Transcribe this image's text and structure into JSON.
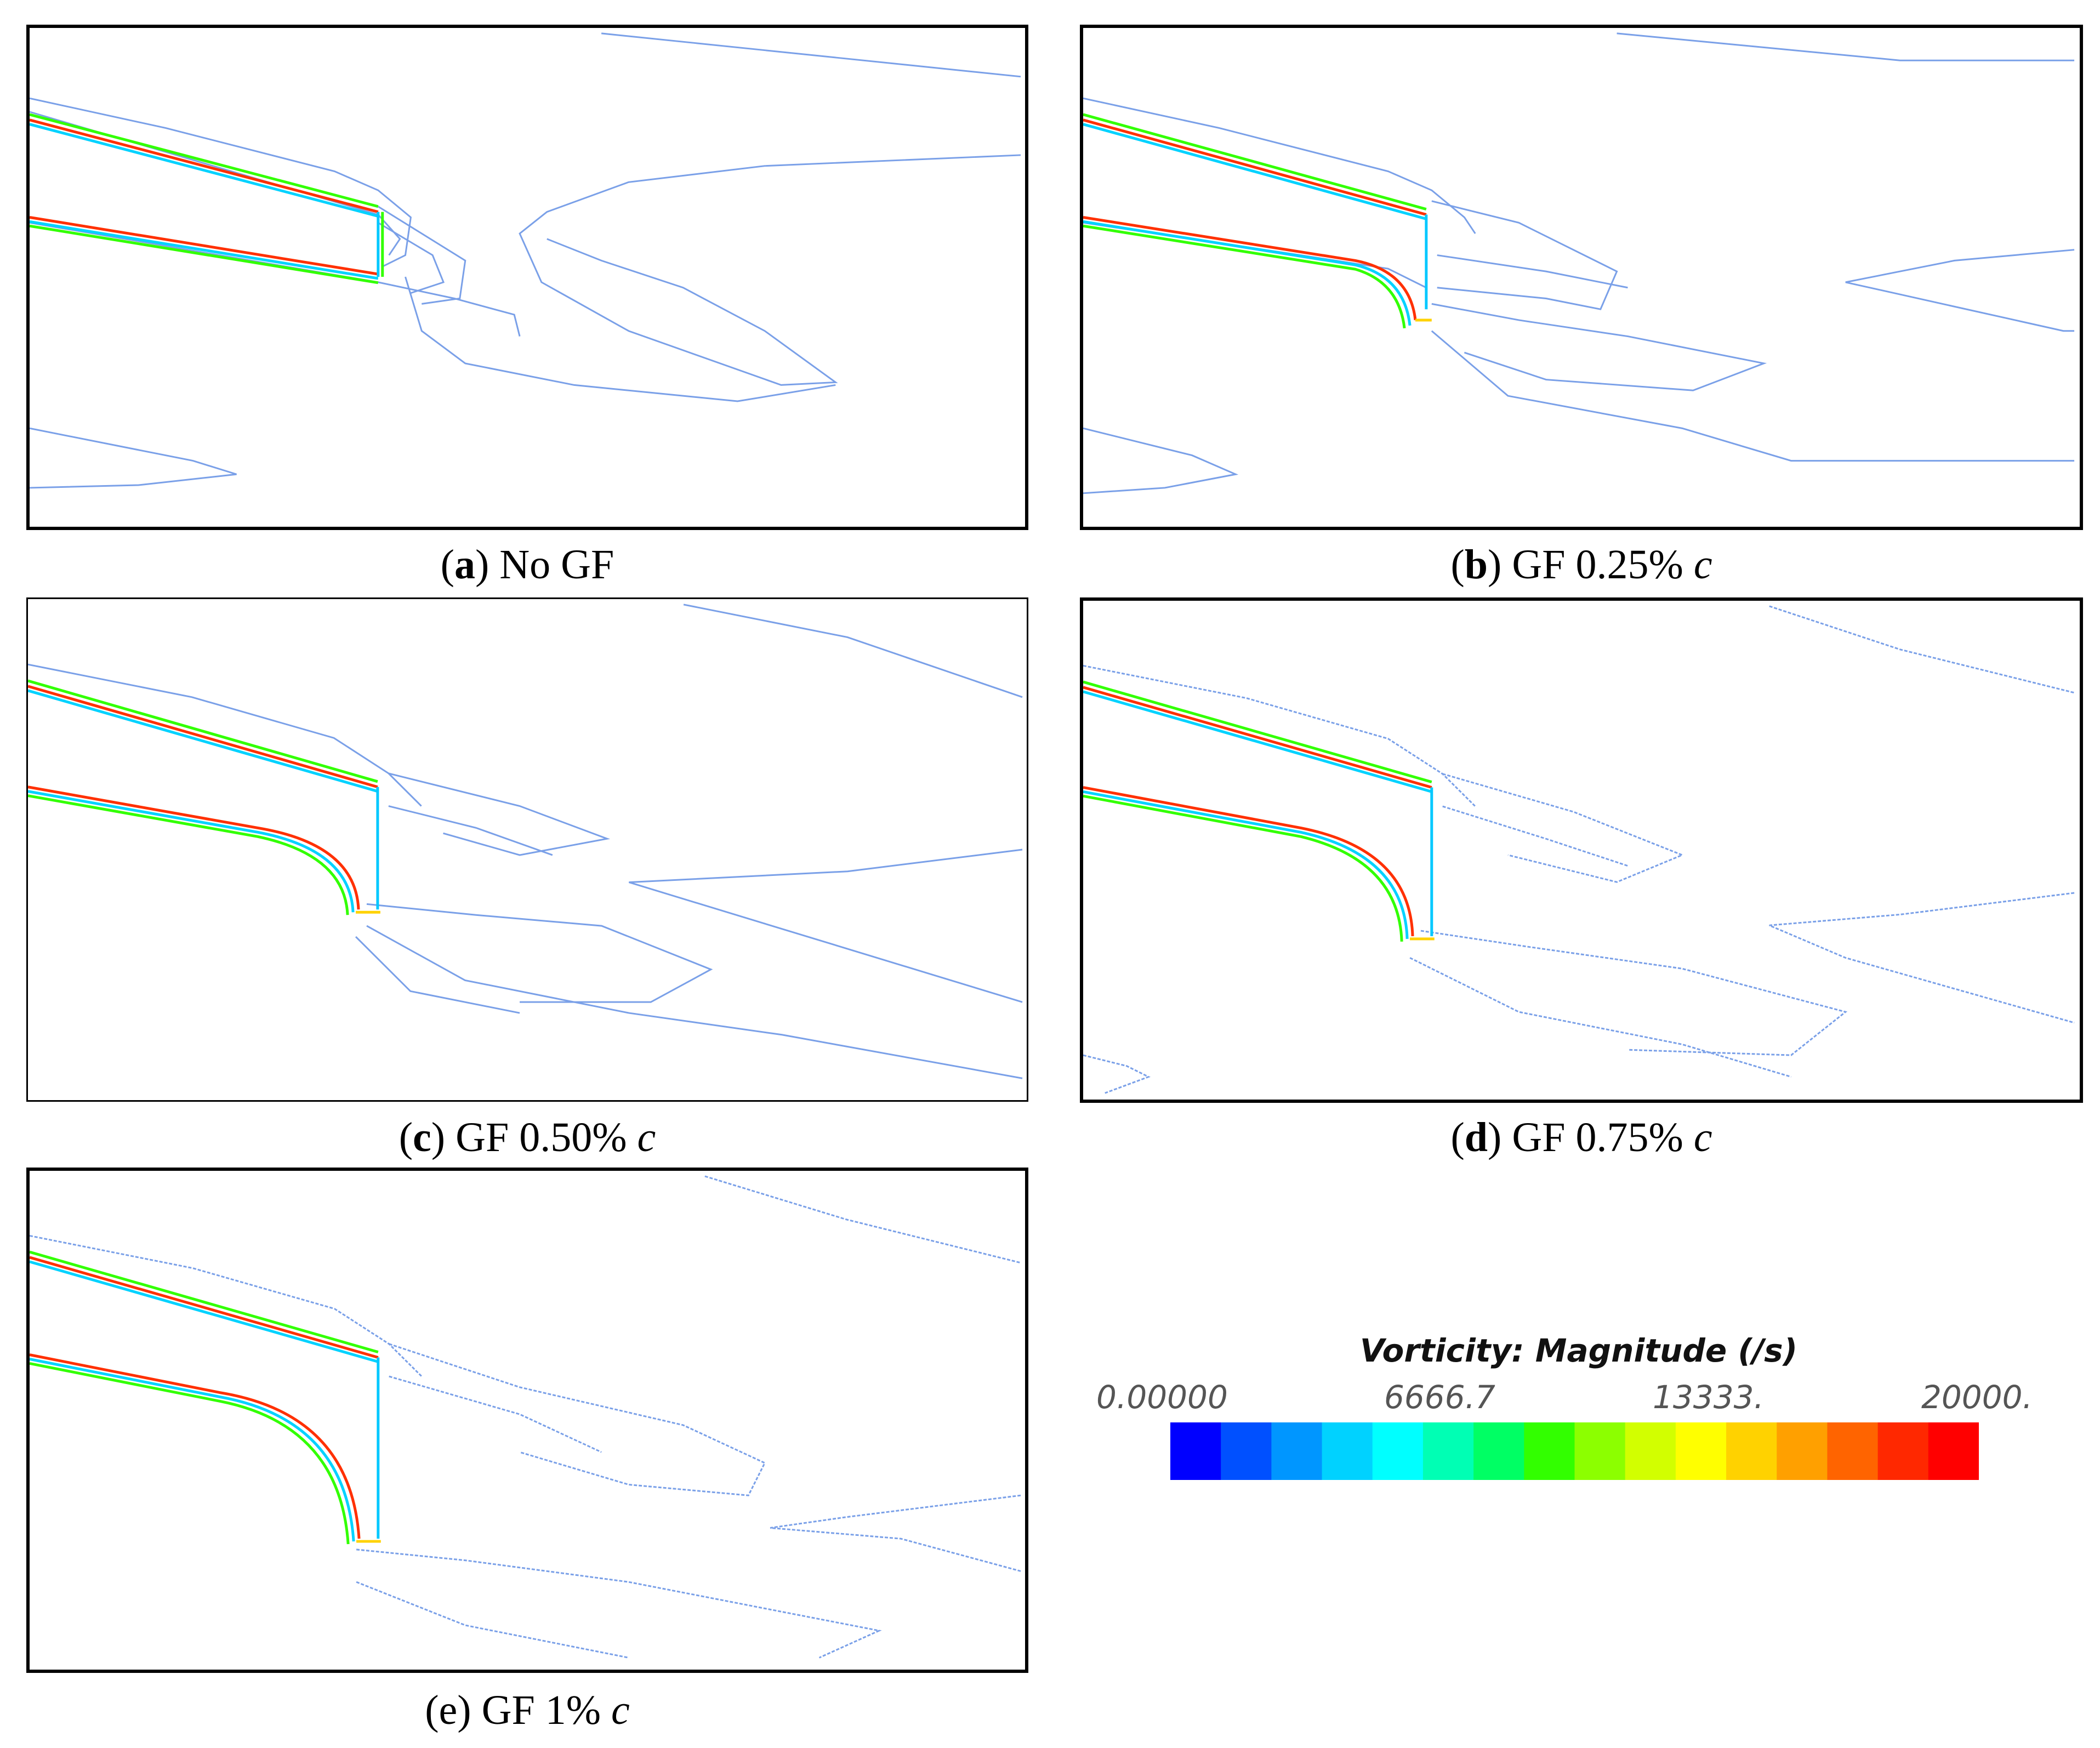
{
  "panels": [
    {
      "id": "a",
      "letter": "a",
      "label": "No GF",
      "italic_suffix": "",
      "letter_bold": true
    },
    {
      "id": "b",
      "letter": "b",
      "label": "GF 0.25%",
      "italic_suffix": "c",
      "letter_bold": true
    },
    {
      "id": "c",
      "letter": "c",
      "label": "GF 0.50%",
      "italic_suffix": "c",
      "letter_bold": true
    },
    {
      "id": "d",
      "letter": "d",
      "label": "GF 0.75%",
      "italic_suffix": "c",
      "letter_bold": true
    },
    {
      "id": "e",
      "letter": "e",
      "label": "GF 1%",
      "italic_suffix": "c",
      "letter_bold": false
    }
  ],
  "legend": {
    "title": "Vorticity: Magnitude (/s)",
    "ticks": [
      "0.00000",
      "6666.7",
      "13333.",
      "20000."
    ],
    "range": [
      0,
      20000
    ],
    "colormap": [
      "#0000ff",
      "#0050ff",
      "#0096ff",
      "#00d2ff",
      "#00ffff",
      "#00ffb4",
      "#00ff64",
      "#32ff00",
      "#8cff00",
      "#d2ff00",
      "#ffff00",
      "#ffd200",
      "#ffa000",
      "#ff6400",
      "#ff2800",
      "#ff0000"
    ],
    "contour_color": "#7aa0e8"
  }
}
